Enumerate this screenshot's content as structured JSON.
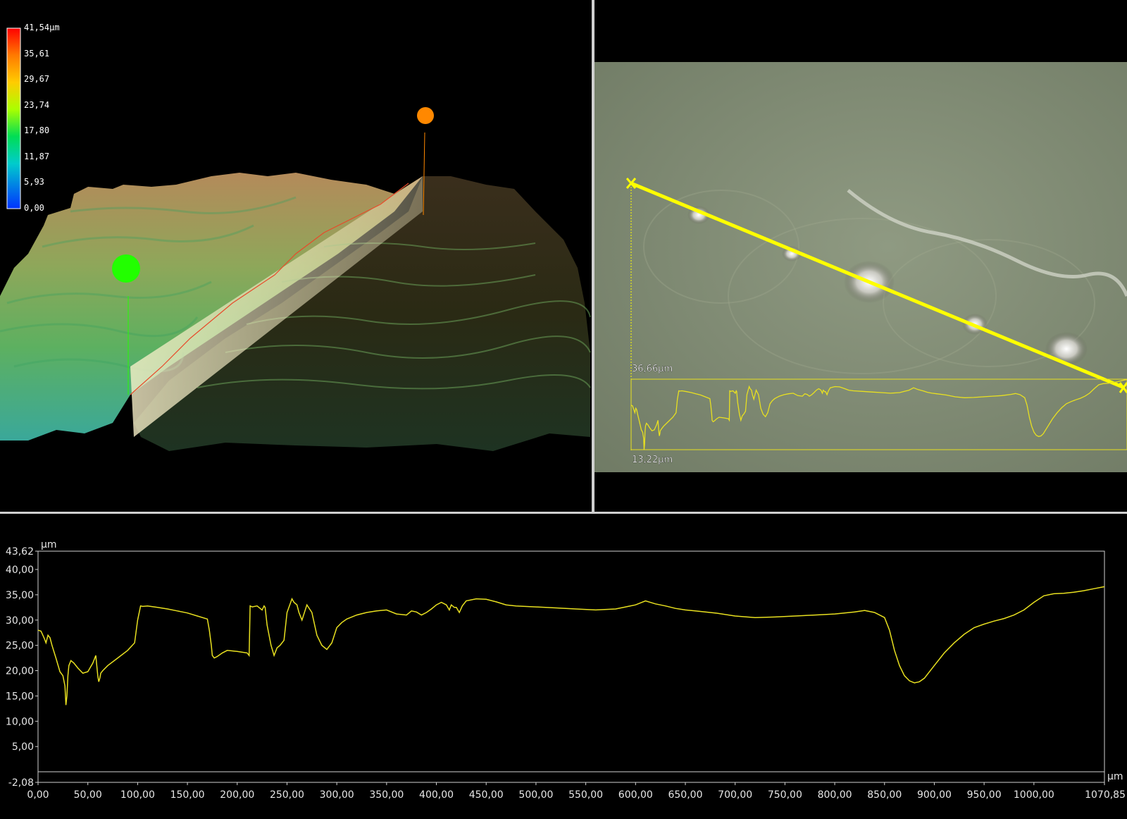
{
  "view3d": {
    "legend": {
      "labels": [
        "41,54µm",
        "35,61",
        "29,67",
        "23,74",
        "17,80",
        "11,87",
        "5,93",
        "0,00"
      ]
    },
    "markers": [
      {
        "name": "green-marker",
        "color": "#22ff00"
      },
      {
        "name": "orange-marker",
        "color": "#ff8800"
      }
    ]
  },
  "image_view": {
    "profile_max_label": "36,66µm",
    "profile_min_label": "13,22µm",
    "line_color": "#ffff00"
  },
  "chart_data": {
    "type": "line",
    "ylabel": "µm",
    "xlabel": "µm",
    "xlim": [
      0,
      1070.85
    ],
    "ylim": [
      -2.08,
      43.62
    ],
    "x_ticks": [
      "0,00",
      "50,00",
      "100,00",
      "150,00",
      "200,00",
      "250,00",
      "300,00",
      "350,00",
      "400,00",
      "450,00",
      "500,00",
      "550,00",
      "600,00",
      "650,00",
      "700,00",
      "750,00",
      "800,00",
      "850,00",
      "900,00",
      "950,00",
      "1000,00",
      "1070,85"
    ],
    "y_ticks": [
      "43,62",
      "40,00",
      "35,00",
      "30,00",
      "25,00",
      "20,00",
      "15,00",
      "10,00",
      "5,00",
      "-2,08"
    ],
    "line_color": "#e8e020",
    "series": [
      {
        "x": [
          0,
          3,
          6,
          8,
          10,
          12,
          14,
          18,
          22,
          25,
          27,
          28,
          29,
          30,
          31,
          33,
          36,
          40,
          45,
          50,
          55,
          58,
          60,
          61,
          62,
          63,
          65,
          70,
          80,
          90,
          97,
          100,
          103,
          105,
          110,
          120,
          130,
          140,
          150,
          160,
          170,
          172,
          174,
          175,
          177,
          180,
          185,
          190,
          200,
          210,
          212,
          213,
          215,
          220,
          225,
          227,
          228,
          230,
          234,
          237,
          240,
          243,
          247,
          250,
          255,
          257,
          260,
          262,
          265,
          270,
          275,
          280,
          285,
          290,
          295,
          300,
          305,
          310,
          320,
          330,
          340,
          350,
          360,
          370,
          375,
          380,
          385,
          390,
          395,
          400,
          405,
          410,
          413,
          415,
          418,
          420,
          423,
          426,
          430,
          440,
          450,
          460,
          470,
          480,
          500,
          520,
          540,
          560,
          580,
          590,
          600,
          610,
          620,
          630,
          640,
          650,
          660,
          680,
          700,
          720,
          740,
          760,
          780,
          800,
          820,
          830,
          840,
          850,
          855,
          860,
          865,
          870,
          875,
          880,
          885,
          890,
          900,
          910,
          920,
          930,
          940,
          950,
          960,
          970,
          980,
          990,
          1000,
          1010,
          1020,
          1030,
          1040,
          1050,
          1060,
          1070.85
        ],
        "y": [
          28.0,
          27.8,
          26.5,
          25.5,
          27.0,
          26.5,
          25.0,
          22.5,
          19.8,
          19.0,
          17.0,
          13.2,
          15.0,
          19.0,
          21.0,
          22.0,
          21.5,
          20.5,
          19.5,
          19.8,
          21.5,
          23.0,
          19.0,
          17.8,
          18.5,
          19.5,
          20.0,
          21.0,
          22.5,
          24.0,
          25.5,
          30.0,
          32.8,
          32.7,
          32.8,
          32.5,
          32.2,
          31.8,
          31.4,
          30.8,
          30.2,
          28.0,
          25.0,
          23.0,
          22.5,
          22.8,
          23.5,
          24.0,
          23.8,
          23.5,
          23.0,
          32.8,
          32.6,
          32.8,
          32.0,
          32.8,
          32.5,
          29.0,
          25.0,
          23.0,
          24.5,
          25.0,
          26.0,
          31.5,
          34.2,
          33.5,
          33.0,
          31.5,
          30.0,
          33.0,
          31.5,
          27.0,
          25.0,
          24.2,
          25.5,
          28.5,
          29.5,
          30.2,
          31.0,
          31.5,
          31.8,
          32.0,
          31.2,
          31.0,
          31.8,
          31.6,
          31.0,
          31.5,
          32.2,
          33.0,
          33.5,
          33.0,
          32.0,
          33.0,
          32.5,
          32.5,
          31.5,
          32.8,
          33.8,
          34.2,
          34.1,
          33.6,
          33.0,
          32.8,
          32.6,
          32.4,
          32.2,
          32.0,
          32.2,
          32.6,
          33.0,
          33.8,
          33.2,
          32.8,
          32.3,
          32.0,
          31.8,
          31.4,
          30.8,
          30.5,
          30.6,
          30.8,
          31.0,
          31.2,
          31.6,
          31.9,
          31.5,
          30.5,
          28.0,
          24.0,
          21.0,
          19.0,
          18.0,
          17.6,
          17.8,
          18.5,
          21.0,
          23.5,
          25.5,
          27.2,
          28.5,
          29.2,
          29.8,
          30.3,
          31.0,
          32.0,
          33.5,
          34.8,
          35.2,
          35.3,
          35.5,
          35.8,
          36.2,
          36.6
        ]
      }
    ]
  }
}
